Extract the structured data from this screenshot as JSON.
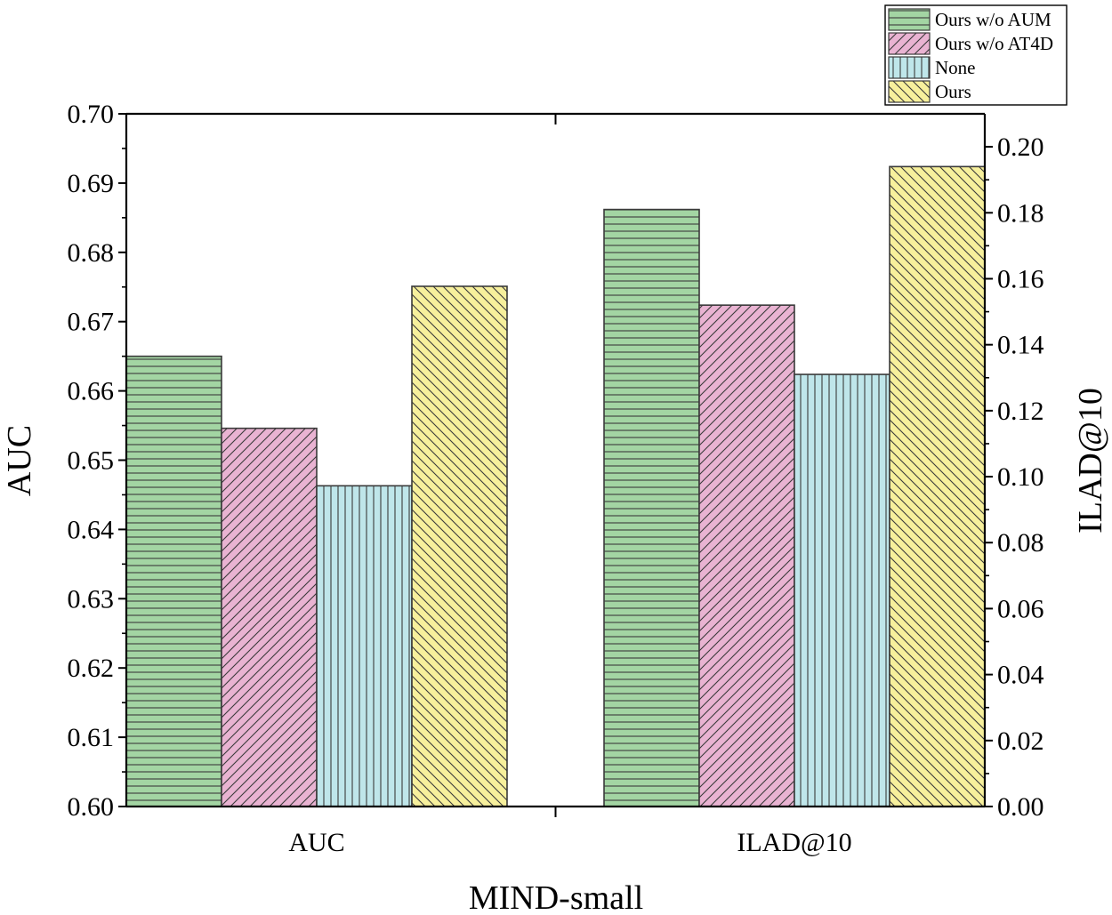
{
  "chart_data": {
    "type": "bar",
    "xlabel": "MIND-small",
    "categories": [
      "AUC",
      "ILAD@10"
    ],
    "series": [
      {
        "name": "Ours w/o AUM",
        "values": [
          0.665,
          0.181
        ],
        "color": "#a3d5a3",
        "pattern": "horizontal-lines"
      },
      {
        "name": "Ours w/o AT4D",
        "values": [
          0.6546,
          0.152
        ],
        "color": "#e9b3d2",
        "pattern": "diagonal-up"
      },
      {
        "name": "None",
        "values": [
          0.6463,
          0.131
        ],
        "color": "#bfe6ea",
        "pattern": "vertical-lines"
      },
      {
        "name": "Ours",
        "values": [
          0.6751,
          0.194
        ],
        "color": "#f7f09c",
        "pattern": "diagonal-down"
      }
    ],
    "left_axis": {
      "label": "AUC",
      "ylim": [
        0.6,
        0.7
      ],
      "ticks": [
        "0.60",
        "0.61",
        "0.62",
        "0.63",
        "0.64",
        "0.65",
        "0.66",
        "0.67",
        "0.68",
        "0.69",
        "0.70"
      ],
      "applies_to": "AUC"
    },
    "right_axis": {
      "label": "ILAD@10",
      "ylim": [
        0.0,
        0.21
      ],
      "ticks": [
        "0.00",
        "0.02",
        "0.04",
        "0.06",
        "0.08",
        "0.10",
        "0.12",
        "0.14",
        "0.16",
        "0.18",
        "0.20"
      ],
      "applies_to": "ILAD@10"
    },
    "legend_position": "top-right",
    "grid": false
  }
}
